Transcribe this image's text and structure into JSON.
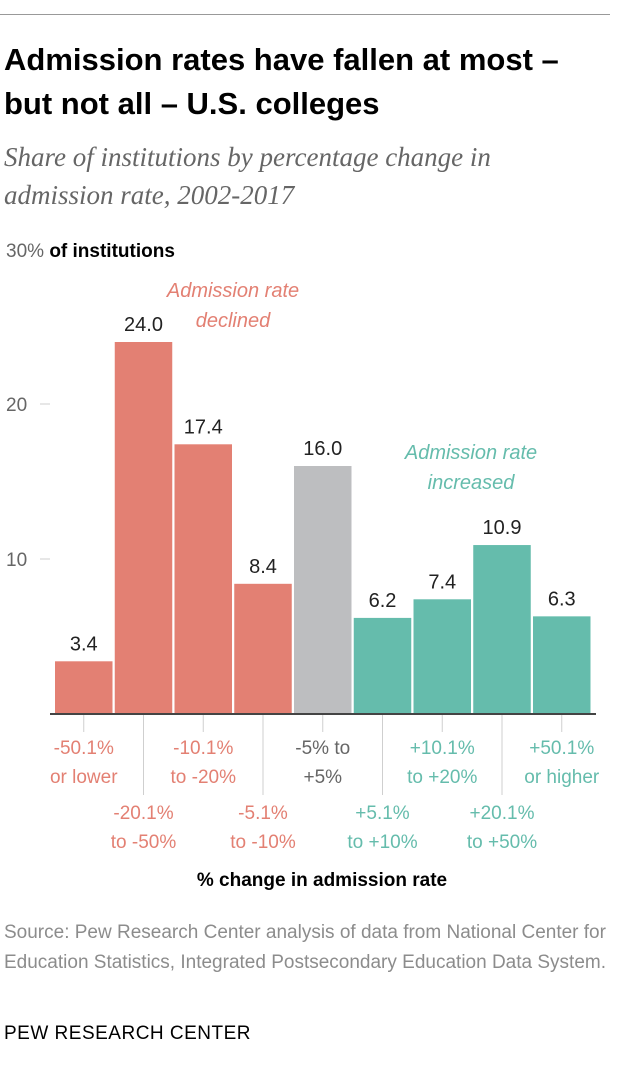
{
  "title": "Admission rates have fallen at most – but not all – U.S. colleges",
  "subtitle": "Share of institutions by percentage change in admission rate, 2002-2017",
  "colors": {
    "declined": "#e38073",
    "neutral": "#bdbec0",
    "increased": "#65bcac",
    "axis": "#444444",
    "tick": "#cfcfcf",
    "tick_label": "#666666"
  },
  "chart_data": {
    "type": "bar",
    "title": "Admission rates have fallen at most – but not all – U.S. colleges",
    "xlabel": "% change in admission rate",
    "ylabel": "of institutions",
    "ylabel_top_value": "30%",
    "ylim": [
      0,
      30
    ],
    "yticks": [
      10,
      20
    ],
    "categories": [
      [
        "-50.1%",
        "or lower"
      ],
      [
        "-20.1%",
        "to -50%"
      ],
      [
        "-10.1%",
        "to -20%"
      ],
      [
        "-5.1%",
        "to -10%"
      ],
      [
        "-5% to",
        "+5%"
      ],
      [
        "+5.1%",
        "to +10%"
      ],
      [
        "+10.1%",
        "to +20%"
      ],
      [
        "+20.1%",
        "to +50%"
      ],
      [
        "+50.1%",
        "or higher"
      ]
    ],
    "values": [
      3.4,
      24.0,
      17.4,
      8.4,
      16.0,
      6.2,
      7.4,
      10.9,
      6.3
    ],
    "value_labels": [
      "3.4",
      "24.0",
      "17.4",
      "8.4",
      "16.0",
      "6.2",
      "7.4",
      "10.9",
      "6.3"
    ],
    "groups": [
      "declined",
      "declined",
      "declined",
      "declined",
      "neutral",
      "increased",
      "increased",
      "increased",
      "increased"
    ],
    "annotations": [
      {
        "text": [
          "Admission rate",
          "declined"
        ],
        "group": "declined"
      },
      {
        "text": [
          "Admission rate",
          "increased"
        ],
        "group": "increased"
      }
    ]
  },
  "source": "Source: Pew Research Center analysis of data from National Center for Education Statistics, Integrated Postsecondary Education Data System.",
  "brand": "PEW RESEARCH CENTER"
}
